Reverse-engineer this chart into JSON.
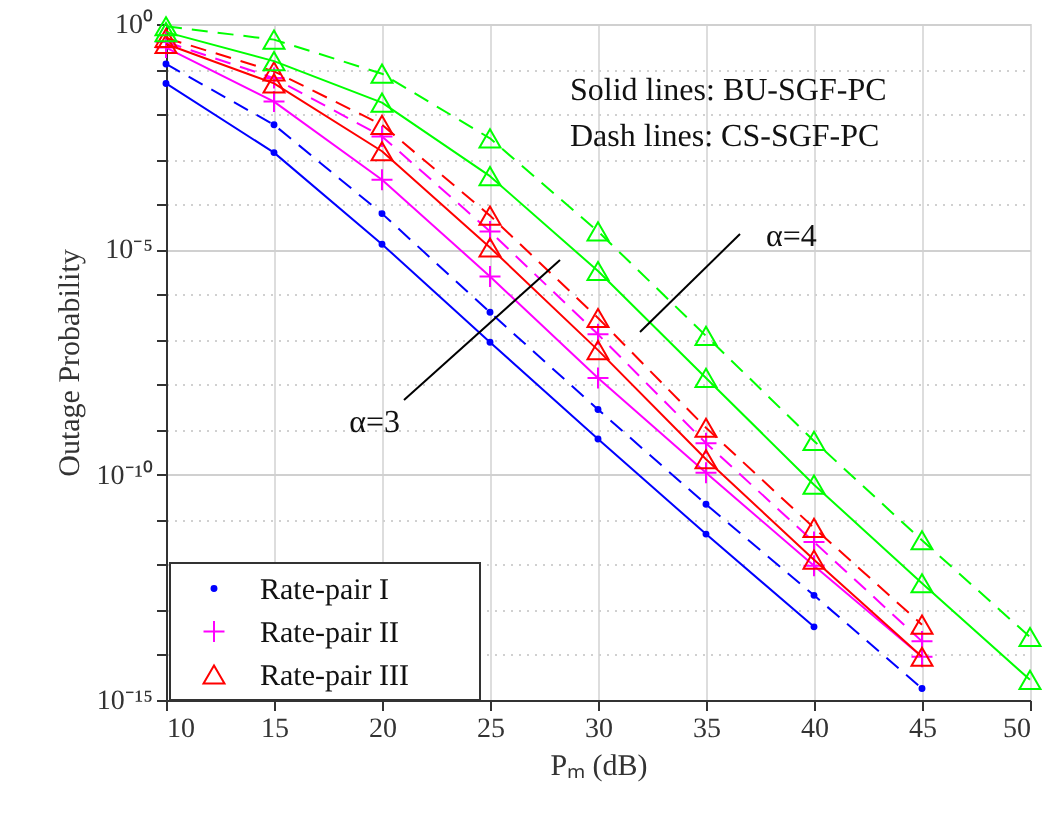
{
  "chart_data": {
    "type": "line",
    "xlabel": "Pₘ (dB)",
    "ylabel": "Outage Probability",
    "x": [
      10,
      15,
      20,
      25,
      30,
      35,
      40,
      45,
      50
    ],
    "series": [
      {
        "name": "Rate-pair I",
        "color": "#0000ff",
        "marker": "circle",
        "line_style": "solid",
        "values": [
          0.048,
          0.0014,
          1.3e-05,
          8.7e-08,
          6.2e-10,
          4.8e-12,
          4.2e-14,
          null,
          null
        ]
      },
      {
        "color": "#0000ff",
        "marker": "circle",
        "line_style": "dashed",
        "values": [
          0.13,
          0.0058,
          6.2e-05,
          4e-07,
          2.8e-09,
          2.2e-11,
          2.1e-13,
          1.8e-15,
          null
        ]
      },
      {
        "name": "Rate-pair II",
        "color": "#ff00ff",
        "marker": "cross",
        "line_style": "solid",
        "values": [
          0.3,
          0.019,
          0.00035,
          2.5e-06,
          1.4e-08,
          1.1e-10,
          9.5e-13,
          9.1e-15,
          null
        ]
      },
      {
        "color": "#ff00ff",
        "marker": "cross",
        "line_style": "dashed",
        "values": [
          0.4,
          0.063,
          0.0032,
          2.5e-05,
          1.3e-07,
          5e-10,
          3.2e-12,
          2e-14,
          null
        ]
      },
      {
        "name": "Rate-pair III",
        "color": "#ff0000",
        "marker": "triangle",
        "line_style": "solid",
        "values": [
          0.36,
          0.048,
          0.0015,
          1.1e-05,
          5.8e-08,
          2.2e-10,
          1.3e-12,
          9.1e-15,
          null
        ]
      },
      {
        "color": "#ff0000",
        "marker": "triangle",
        "line_style": "dashed",
        "values": [
          0.49,
          0.089,
          0.0058,
          5.6e-05,
          3e-07,
          1.1e-09,
          6.6e-12,
          4.7e-14,
          null
        ]
      },
      {
        "color": "#00ff00",
        "marker": "triangle",
        "line_style": "solid",
        "values": [
          0.66,
          0.15,
          0.018,
          0.00042,
          3.3e-06,
          1.4e-08,
          6e-11,
          3.9e-13,
          2.8e-15
        ]
      },
      {
        "color": "#00ff00",
        "marker": "triangle",
        "line_style": "dashed",
        "values": [
          0.89,
          0.45,
          0.079,
          0.0029,
          2.5e-05,
          1.2e-07,
          5.6e-10,
          3.5e-12,
          2.5e-14
        ]
      }
    ],
    "xlim": [
      10,
      50
    ],
    "xticks": [
      10,
      15,
      20,
      25,
      30,
      35,
      40,
      45,
      50
    ],
    "ylim": [
      1e-15,
      1
    ],
    "log": true,
    "yticks": [
      {
        "value": 1,
        "label": "10⁰"
      },
      {
        "value": 0.1,
        "label": null
      },
      {
        "value": 0.01,
        "label": null
      },
      {
        "value": 0.001,
        "label": null
      },
      {
        "value": 0.0001,
        "label": null
      },
      {
        "value": 1e-05,
        "label": "10⁻⁵"
      },
      {
        "value": 1e-06,
        "label": null
      },
      {
        "value": 1e-07,
        "label": null
      },
      {
        "value": 1e-08,
        "label": null
      },
      {
        "value": 1e-09,
        "label": null
      },
      {
        "value": 1e-10,
        "label": "10⁻¹⁰"
      },
      {
        "value": 1e-11,
        "label": null
      },
      {
        "value": 1e-12,
        "label": null
      },
      {
        "value": 1e-13,
        "label": null
      },
      {
        "value": 1e-14,
        "label": null
      },
      {
        "value": 1e-15,
        "label": "10⁻¹⁵"
      }
    ],
    "grid": true,
    "legend": "bottom left",
    "annotations": [
      "Solid lines: BU-SGF-PC",
      "Dash lines: CS-SGF-PC",
      "α=4",
      "α=3"
    ]
  }
}
